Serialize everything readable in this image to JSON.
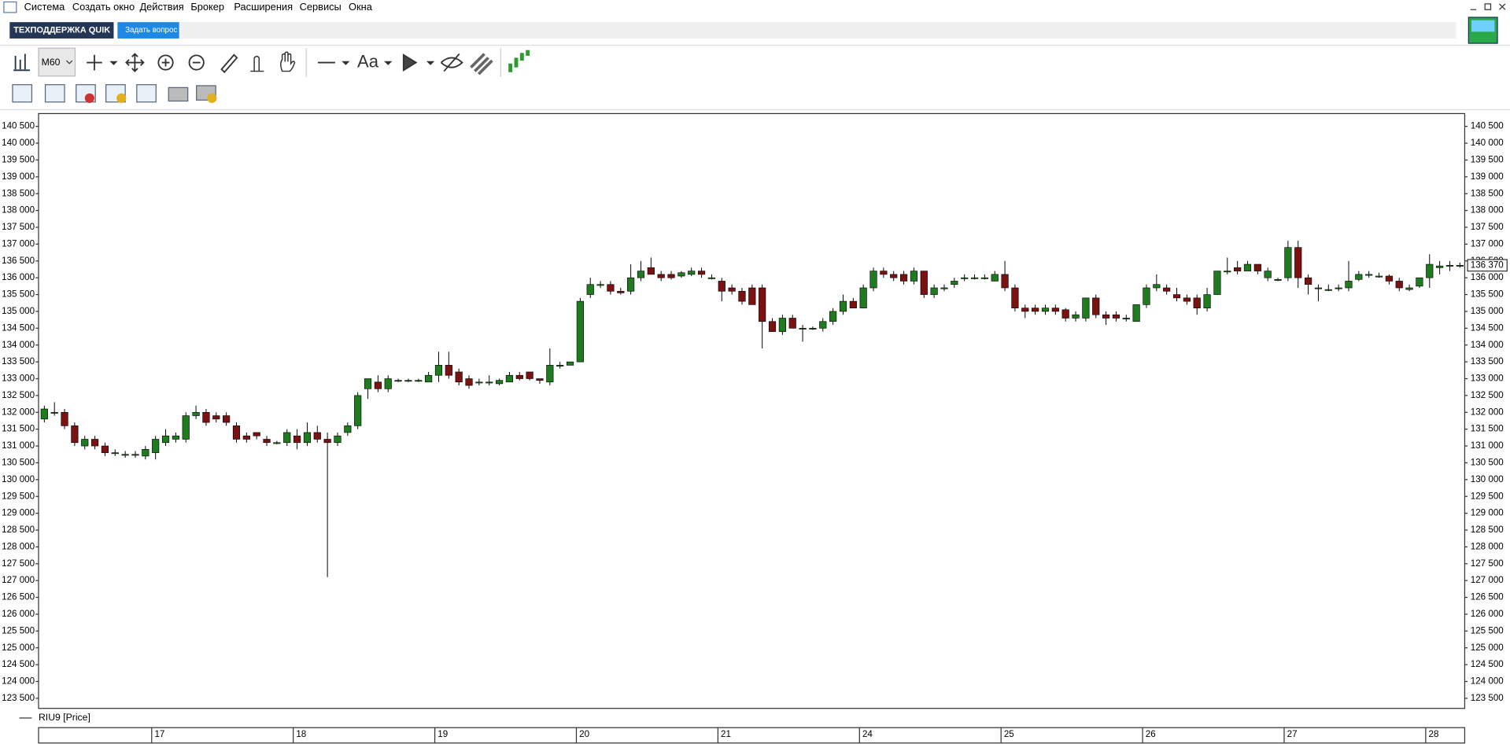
{
  "menu": [
    "Система",
    "Создать окно",
    "Действия",
    "Брокер",
    "Расширения",
    "Сервисы",
    "Окна"
  ],
  "toolbar": {
    "support": "ТЕХПОДДЕРЖКА QUIK",
    "ask": "Задать вопрос",
    "interval": "M60"
  },
  "chart_data": {
    "type": "candlestick",
    "series": [
      {
        "name": "RIU9 [Price]",
        "up_color": "#1e7b1e",
        "down_color": "#7b1111",
        "values": [
          [
            131800,
            132200,
            131700,
            132100
          ],
          [
            132000,
            132300,
            131900,
            132000
          ],
          [
            132000,
            132100,
            131500,
            131600
          ],
          [
            131600,
            131700,
            131000,
            131100
          ],
          [
            131000,
            131300,
            130900,
            131200
          ],
          [
            131200,
            131300,
            130900,
            131000
          ],
          [
            131000,
            131100,
            130700,
            130800
          ],
          [
            130800,
            130900,
            130700,
            130800
          ],
          [
            130750,
            130850,
            130650,
            130750
          ],
          [
            130750,
            130850,
            130650,
            130750
          ],
          [
            130700,
            131000,
            130600,
            130900
          ],
          [
            130800,
            131300,
            130600,
            131200
          ],
          [
            131100,
            131500,
            131000,
            131300
          ],
          [
            131200,
            131400,
            131100,
            131300
          ],
          [
            131200,
            132000,
            131100,
            131900
          ],
          [
            131900,
            132200,
            131800,
            132000
          ],
          [
            132000,
            132100,
            131600,
            131700
          ],
          [
            131900,
            132000,
            131700,
            131800
          ],
          [
            131900,
            132000,
            131600,
            131700
          ],
          [
            131600,
            131700,
            131100,
            131200
          ],
          [
            131300,
            131400,
            131100,
            131200
          ],
          [
            131400,
            131400,
            131200,
            131300
          ],
          [
            131200,
            131300,
            131000,
            131100
          ],
          [
            131100,
            131150,
            131050,
            131100
          ],
          [
            131100,
            131500,
            131000,
            131400
          ],
          [
            131300,
            131500,
            130900,
            131100
          ],
          [
            131100,
            131700,
            131000,
            131400
          ],
          [
            131400,
            131600,
            131100,
            131200
          ],
          [
            131200,
            131400,
            127100,
            131100
          ],
          [
            131100,
            131400,
            131000,
            131300
          ],
          [
            131400,
            131700,
            131300,
            131600
          ],
          [
            131600,
            132600,
            131500,
            132500
          ],
          [
            132700,
            133000,
            132400,
            133000
          ],
          [
            132900,
            133100,
            132600,
            132700
          ],
          [
            132700,
            133100,
            132600,
            133000
          ],
          [
            132950,
            133000,
            132900,
            132950
          ],
          [
            132950,
            133000,
            132900,
            132950
          ],
          [
            132950,
            133000,
            132900,
            132950
          ],
          [
            132900,
            133200,
            132900,
            133100
          ],
          [
            133100,
            133800,
            132900,
            133400
          ],
          [
            133400,
            133800,
            133000,
            133100
          ],
          [
            133200,
            133300,
            132800,
            132900
          ],
          [
            133000,
            133100,
            132700,
            132800
          ],
          [
            132900,
            133000,
            132800,
            132900
          ],
          [
            132900,
            133100,
            132800,
            132900
          ],
          [
            132850,
            133000,
            132800,
            132950
          ],
          [
            132900,
            133200,
            132900,
            133100
          ],
          [
            133100,
            133200,
            132950,
            133000
          ],
          [
            133200,
            133200,
            132950,
            133000
          ],
          [
            133000,
            133000,
            132850,
            132950
          ],
          [
            132900,
            133900,
            132800,
            133400
          ],
          [
            133400,
            133500,
            133300,
            133400
          ],
          [
            133400,
            133500,
            133400,
            133500
          ],
          [
            133500,
            135400,
            133500,
            135300
          ],
          [
            135500,
            136000,
            135400,
            135800
          ],
          [
            135800,
            135900,
            135700,
            135800
          ],
          [
            135800,
            135900,
            135500,
            135600
          ],
          [
            135600,
            135700,
            135500,
            135550
          ],
          [
            135600,
            136400,
            135500,
            136000
          ],
          [
            136000,
            136500,
            135900,
            136200
          ],
          [
            136300,
            136600,
            136100,
            136100
          ],
          [
            136100,
            136200,
            135900,
            136000
          ],
          [
            136100,
            136200,
            135950,
            136000
          ],
          [
            136050,
            136200,
            136000,
            136150
          ],
          [
            136100,
            136300,
            136050,
            136200
          ],
          [
            136200,
            136300,
            136000,
            136100
          ],
          [
            136000,
            136100,
            135950,
            136000
          ],
          [
            135900,
            136000,
            135300,
            135600
          ],
          [
            135700,
            135800,
            135500,
            135600
          ],
          [
            135600,
            135700,
            135200,
            135300
          ],
          [
            135700,
            135800,
            135200,
            135200
          ],
          [
            135700,
            135800,
            133900,
            134700
          ],
          [
            134700,
            134800,
            134400,
            134400
          ],
          [
            134400,
            134900,
            134300,
            134800
          ],
          [
            134800,
            134900,
            134500,
            134500
          ],
          [
            134500,
            134600,
            134100,
            134500
          ],
          [
            134500,
            134550,
            134450,
            134500
          ],
          [
            134500,
            134800,
            134400,
            134700
          ],
          [
            134700,
            135100,
            134600,
            135000
          ],
          [
            135000,
            135500,
            134900,
            135300
          ],
          [
            135300,
            135400,
            135100,
            135100
          ],
          [
            135100,
            135800,
            135100,
            135700
          ],
          [
            135700,
            136300,
            135600,
            136200
          ],
          [
            136200,
            136300,
            136000,
            136100
          ],
          [
            136100,
            136200,
            135900,
            136000
          ],
          [
            136100,
            136200,
            135800,
            135900
          ],
          [
            135900,
            136300,
            135800,
            136200
          ],
          [
            136200,
            136200,
            135400,
            135500
          ],
          [
            135500,
            135800,
            135400,
            135700
          ],
          [
            135700,
            135800,
            135600,
            135700
          ],
          [
            135800,
            136000,
            135700,
            135900
          ],
          [
            136000,
            136100,
            135900,
            136000
          ],
          [
            136000,
            136100,
            135950,
            136000
          ],
          [
            136000,
            136100,
            135950,
            136000
          ],
          [
            135900,
            136200,
            135900,
            136100
          ],
          [
            136100,
            136500,
            135600,
            135700
          ],
          [
            135700,
            135800,
            135000,
            135100
          ],
          [
            135100,
            135200,
            134800,
            135000
          ],
          [
            135100,
            135200,
            134900,
            135000
          ],
          [
            135000,
            135200,
            134900,
            135100
          ],
          [
            135100,
            135200,
            134900,
            135000
          ],
          [
            135050,
            135100,
            134700,
            134800
          ],
          [
            134800,
            135000,
            134700,
            134900
          ],
          [
            134800,
            135400,
            134700,
            135400
          ],
          [
            135400,
            135500,
            134800,
            134900
          ],
          [
            134900,
            135000,
            134600,
            134800
          ],
          [
            134900,
            135000,
            134700,
            134800
          ],
          [
            134800,
            134900,
            134700,
            134800
          ],
          [
            134700,
            135200,
            134700,
            135200
          ],
          [
            135200,
            135800,
            135100,
            135700
          ],
          [
            135700,
            136100,
            135600,
            135800
          ],
          [
            135700,
            135800,
            135500,
            135600
          ],
          [
            135500,
            135700,
            135300,
            135400
          ],
          [
            135400,
            135500,
            135200,
            135300
          ],
          [
            135400,
            135500,
            134900,
            135100
          ],
          [
            135100,
            135700,
            135000,
            135500
          ],
          [
            135500,
            136200,
            135500,
            136200
          ],
          [
            136200,
            136600,
            136100,
            136200
          ],
          [
            136300,
            136500,
            136100,
            136200
          ],
          [
            136200,
            136500,
            136200,
            136400
          ],
          [
            136400,
            136400,
            136100,
            136200
          ],
          [
            136000,
            136300,
            135900,
            136200
          ],
          [
            135950,
            136000,
            135900,
            135950
          ],
          [
            136000,
            137100,
            135900,
            136900
          ],
          [
            136900,
            137100,
            135700,
            136000
          ],
          [
            136000,
            136100,
            135500,
            135800
          ],
          [
            135700,
            135800,
            135300,
            135700
          ],
          [
            135650,
            135800,
            135600,
            135650
          ],
          [
            135700,
            135800,
            135600,
            135700
          ],
          [
            135700,
            136500,
            135600,
            135900
          ],
          [
            135950,
            136200,
            135900,
            136100
          ],
          [
            136100,
            136200,
            136000,
            136100
          ],
          [
            136050,
            136150,
            136000,
            136050
          ],
          [
            136050,
            136100,
            135800,
            135900
          ],
          [
            135900,
            136000,
            135600,
            135700
          ],
          [
            135650,
            135800,
            135600,
            135700
          ],
          [
            135750,
            136000,
            135700,
            136000
          ],
          [
            136000,
            136700,
            135700,
            136400
          ],
          [
            136300,
            136500,
            136100,
            136350
          ],
          [
            136370,
            136500,
            136200,
            136370
          ],
          [
            136370,
            136450,
            136300,
            136370
          ]
        ]
      }
    ],
    "categories": [
      null,
      null,
      null,
      null,
      null,
      null,
      null,
      null,
      null,
      null,
      null,
      "17",
      null,
      null,
      null,
      null,
      null,
      null,
      null,
      null,
      null,
      null,
      null,
      null,
      null,
      "18",
      null,
      null,
      null,
      null,
      null,
      null,
      null,
      null,
      null,
      null,
      null,
      null,
      null,
      "19",
      null,
      null,
      null,
      null,
      null,
      null,
      null,
      null,
      null,
      null,
      null,
      null,
      null,
      "20",
      null,
      null,
      null,
      null,
      null,
      null,
      null,
      null,
      null,
      null,
      null,
      null,
      null,
      "21",
      null,
      null,
      null,
      null,
      null,
      null,
      null,
      null,
      null,
      null,
      null,
      null,
      null,
      "24",
      null,
      null,
      null,
      null,
      null,
      null,
      null,
      null,
      null,
      null,
      null,
      null,
      null,
      "25",
      null,
      null,
      null,
      null,
      null,
      null,
      null,
      null,
      null,
      null,
      null,
      null,
      null,
      "26",
      null,
      null,
      null,
      null,
      null,
      null,
      null,
      null,
      null,
      null,
      null,
      null,
      null,
      "27",
      null,
      null,
      null,
      null,
      null,
      null,
      null,
      null,
      null,
      null,
      null,
      null,
      null,
      "28",
      null,
      null,
      null
    ],
    "ylim": [
      123200,
      140880
    ],
    "yticks": [
      {
        "value": 123500,
        "label": "123 500"
      },
      {
        "value": 124000,
        "label": "124 000"
      },
      {
        "value": 124500,
        "label": "124 500"
      },
      {
        "value": 125000,
        "label": "125 000"
      },
      {
        "value": 125500,
        "label": "125 500"
      },
      {
        "value": 126000,
        "label": "126 000"
      },
      {
        "value": 126500,
        "label": "126 500"
      },
      {
        "value": 127000,
        "label": "127 000"
      },
      {
        "value": 127500,
        "label": "127 500"
      },
      {
        "value": 128000,
        "label": "128 000"
      },
      {
        "value": 128500,
        "label": "128 500"
      },
      {
        "value": 129000,
        "label": "129 000"
      },
      {
        "value": 129500,
        "label": "129 500"
      },
      {
        "value": 130000,
        "label": "130 000"
      },
      {
        "value": 130500,
        "label": "130 500"
      },
      {
        "value": 131000,
        "label": "131 000"
      },
      {
        "value": 131500,
        "label": "131 500"
      },
      {
        "value": 132000,
        "label": "132 000"
      },
      {
        "value": 132500,
        "label": "132 500"
      },
      {
        "value": 133000,
        "label": "133 000"
      },
      {
        "value": 133500,
        "label": "133 500"
      },
      {
        "value": 134000,
        "label": "134 000"
      },
      {
        "value": 134500,
        "label": "134 500"
      },
      {
        "value": 135000,
        "label": "135 000"
      },
      {
        "value": 135500,
        "label": "135 500"
      },
      {
        "value": 136000,
        "label": "136 000"
      },
      {
        "value": 136500,
        "label": "136 500"
      },
      {
        "value": 137000,
        "label": "137 000"
      },
      {
        "value": 137500,
        "label": "137 500"
      },
      {
        "value": 138000,
        "label": "138 000"
      },
      {
        "value": 138500,
        "label": "138 500"
      },
      {
        "value": 139000,
        "label": "139 000"
      },
      {
        "value": 139500,
        "label": "139 500"
      },
      {
        "value": 140000,
        "label": "140 000"
      },
      {
        "value": 140500,
        "label": "140 500"
      }
    ],
    "last_price": {
      "value": 136370,
      "label": "136 370"
    }
  }
}
